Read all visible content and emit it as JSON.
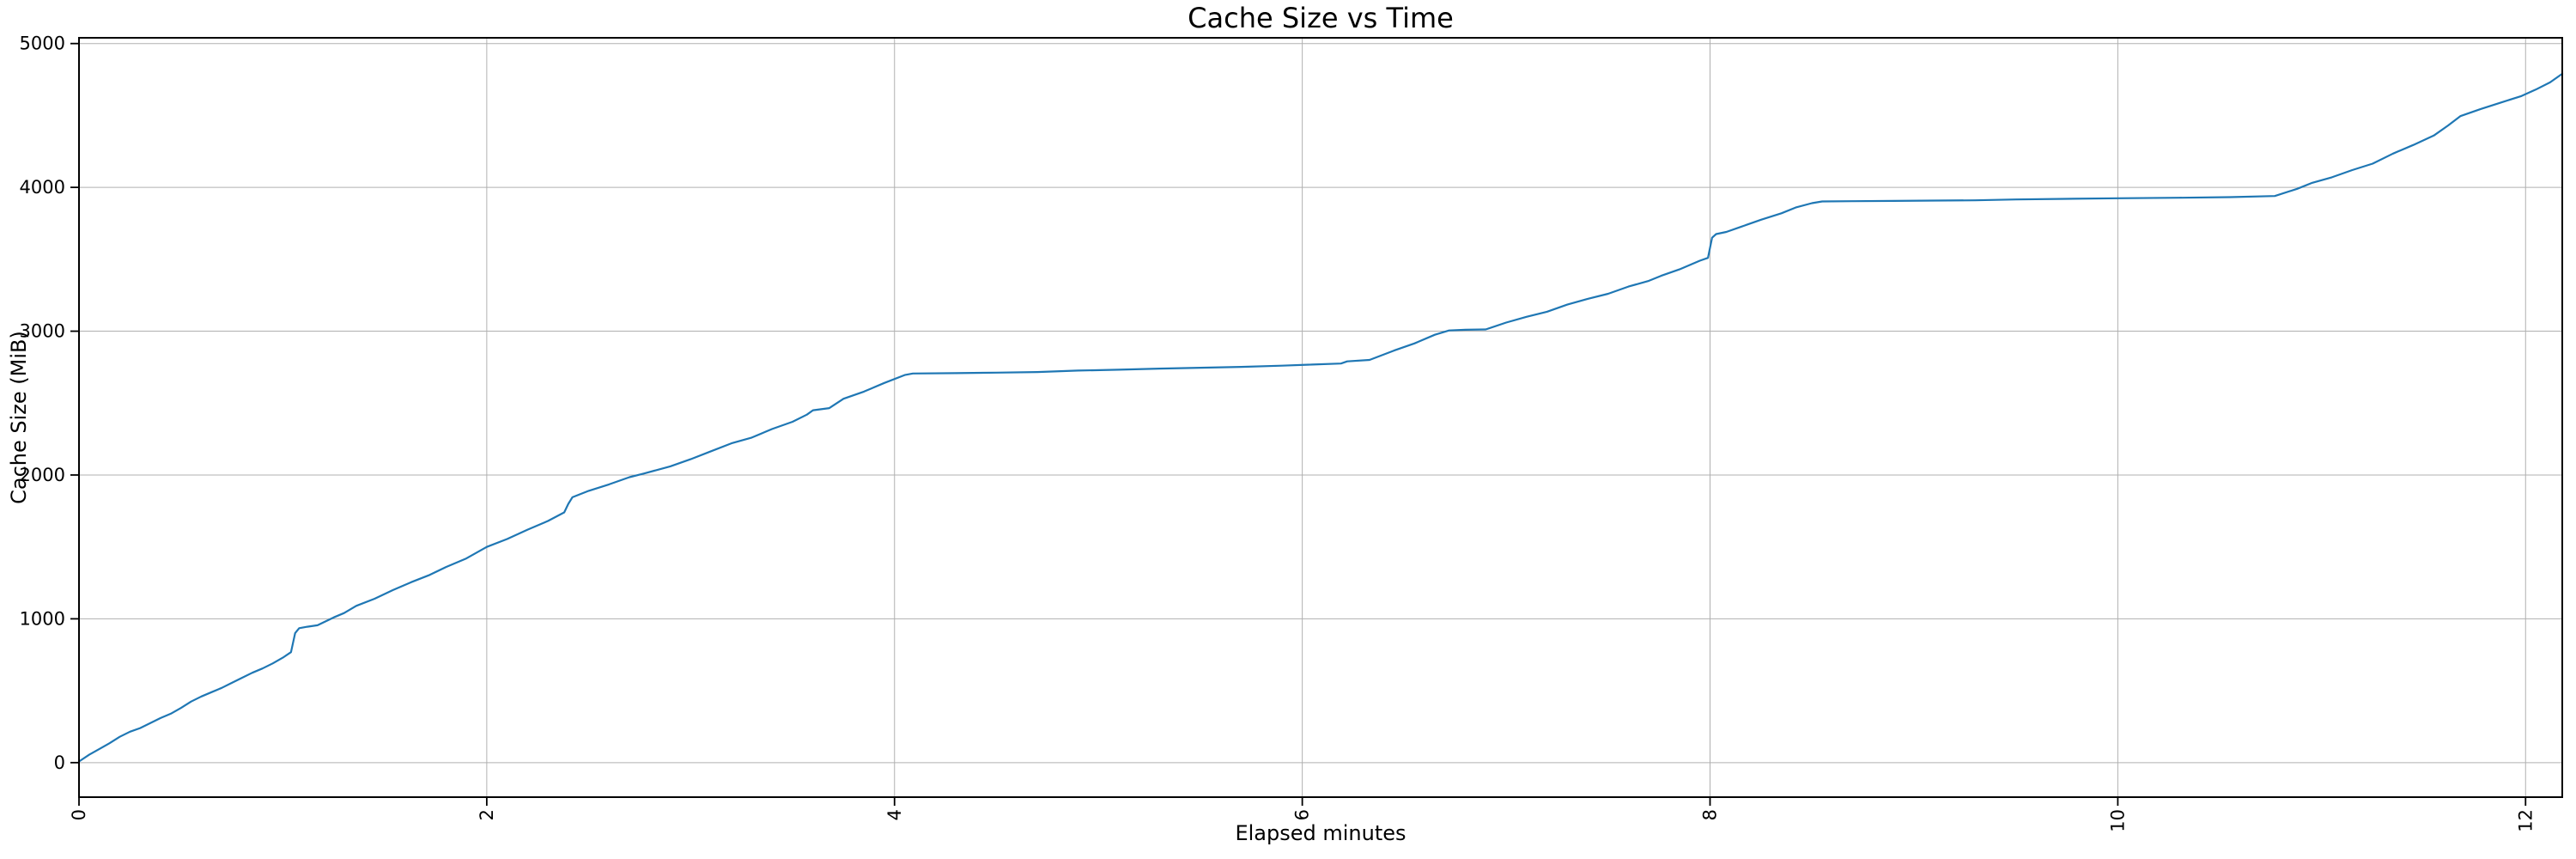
{
  "chart_data": {
    "type": "line",
    "title": "Cache Size vs Time",
    "xlabel": "Elapsed minutes",
    "ylabel": "Cache Size (MiB)",
    "xlim": [
      0,
      12.18
    ],
    "ylim": [
      -240,
      5040
    ],
    "xticks": [
      0,
      2,
      4,
      6,
      8,
      10,
      12
    ],
    "yticks": [
      0,
      1000,
      2000,
      3000,
      4000,
      5000
    ],
    "x_tick_rotation_deg": 90,
    "grid": true,
    "legend_position": "none",
    "colors": {
      "line": "#1f77b4",
      "grid": "#b0b0b0",
      "spine": "#000000",
      "background": "#ffffff",
      "text": "#000000"
    },
    "series": [
      {
        "name": "Cache Size",
        "points": [
          [
            0,
            8
          ],
          [
            0.05,
            55
          ],
          [
            0.1,
            95
          ],
          [
            0.15,
            135
          ],
          [
            0.2,
            180
          ],
          [
            0.25,
            215
          ],
          [
            0.3,
            240
          ],
          [
            0.35,
            275
          ],
          [
            0.4,
            310
          ],
          [
            0.45,
            340
          ],
          [
            0.5,
            380
          ],
          [
            0.55,
            425
          ],
          [
            0.6,
            460
          ],
          [
            0.65,
            490
          ],
          [
            0.7,
            520
          ],
          [
            0.75,
            555
          ],
          [
            0.8,
            590
          ],
          [
            0.85,
            625
          ],
          [
            0.9,
            655
          ],
          [
            0.95,
            690
          ],
          [
            1.0,
            730
          ],
          [
            1.04,
            768
          ],
          [
            1.06,
            900
          ],
          [
            1.08,
            935
          ],
          [
            1.12,
            945
          ],
          [
            1.17,
            955
          ],
          [
            1.25,
            1010
          ],
          [
            1.3,
            1040
          ],
          [
            1.36,
            1090
          ],
          [
            1.45,
            1140
          ],
          [
            1.54,
            1200
          ],
          [
            1.63,
            1255
          ],
          [
            1.72,
            1305
          ],
          [
            1.8,
            1360
          ],
          [
            1.9,
            1420
          ],
          [
            2.0,
            1500
          ],
          [
            2.1,
            1555
          ],
          [
            2.2,
            1620
          ],
          [
            2.3,
            1680
          ],
          [
            2.38,
            1740
          ],
          [
            2.4,
            1800
          ],
          [
            2.42,
            1845
          ],
          [
            2.5,
            1890
          ],
          [
            2.6,
            1935
          ],
          [
            2.7,
            1985
          ],
          [
            2.77,
            2010
          ],
          [
            2.9,
            2060
          ],
          [
            3.0,
            2110
          ],
          [
            3.1,
            2165
          ],
          [
            3.2,
            2220
          ],
          [
            3.3,
            2260
          ],
          [
            3.4,
            2320
          ],
          [
            3.5,
            2370
          ],
          [
            3.57,
            2420
          ],
          [
            3.6,
            2450
          ],
          [
            3.68,
            2465
          ],
          [
            3.75,
            2530
          ],
          [
            3.85,
            2580
          ],
          [
            3.95,
            2640
          ],
          [
            4.05,
            2695
          ],
          [
            4.09,
            2706
          ],
          [
            4.3,
            2708
          ],
          [
            4.5,
            2712
          ],
          [
            4.7,
            2716
          ],
          [
            4.9,
            2726
          ],
          [
            5.1,
            2732
          ],
          [
            5.3,
            2740
          ],
          [
            5.5,
            2746
          ],
          [
            5.7,
            2752
          ],
          [
            5.9,
            2760
          ],
          [
            6.05,
            2768
          ],
          [
            6.19,
            2775
          ],
          [
            6.22,
            2790
          ],
          [
            6.33,
            2800
          ],
          [
            6.45,
            2865
          ],
          [
            6.55,
            2915
          ],
          [
            6.65,
            2975
          ],
          [
            6.72,
            3005
          ],
          [
            6.8,
            3010
          ],
          [
            6.9,
            3012
          ],
          [
            7.0,
            3060
          ],
          [
            7.1,
            3100
          ],
          [
            7.2,
            3135
          ],
          [
            7.3,
            3185
          ],
          [
            7.4,
            3225
          ],
          [
            7.5,
            3260
          ],
          [
            7.6,
            3310
          ],
          [
            7.7,
            3350
          ],
          [
            7.76,
            3385
          ],
          [
            7.85,
            3430
          ],
          [
            7.95,
            3490
          ],
          [
            7.99,
            3510
          ],
          [
            8.01,
            3650
          ],
          [
            8.03,
            3675
          ],
          [
            8.08,
            3690
          ],
          [
            8.15,
            3725
          ],
          [
            8.25,
            3775
          ],
          [
            8.35,
            3820
          ],
          [
            8.42,
            3860
          ],
          [
            8.5,
            3890
          ],
          [
            8.55,
            3902
          ],
          [
            8.7,
            3904
          ],
          [
            8.9,
            3906
          ],
          [
            9.1,
            3908
          ],
          [
            9.3,
            3910
          ],
          [
            9.5,
            3916
          ],
          [
            9.74,
            3920
          ],
          [
            10.0,
            3924
          ],
          [
            10.3,
            3928
          ],
          [
            10.55,
            3932
          ],
          [
            10.77,
            3940
          ],
          [
            10.88,
            3990
          ],
          [
            10.95,
            4030
          ],
          [
            11.05,
            4070
          ],
          [
            11.15,
            4120
          ],
          [
            11.25,
            4165
          ],
          [
            11.35,
            4235
          ],
          [
            11.45,
            4295
          ],
          [
            11.55,
            4360
          ],
          [
            11.62,
            4430
          ],
          [
            11.68,
            4495
          ],
          [
            11.78,
            4545
          ],
          [
            11.88,
            4590
          ],
          [
            11.98,
            4635
          ],
          [
            12.05,
            4680
          ],
          [
            12.12,
            4730
          ],
          [
            12.18,
            4790
          ]
        ]
      }
    ]
  }
}
